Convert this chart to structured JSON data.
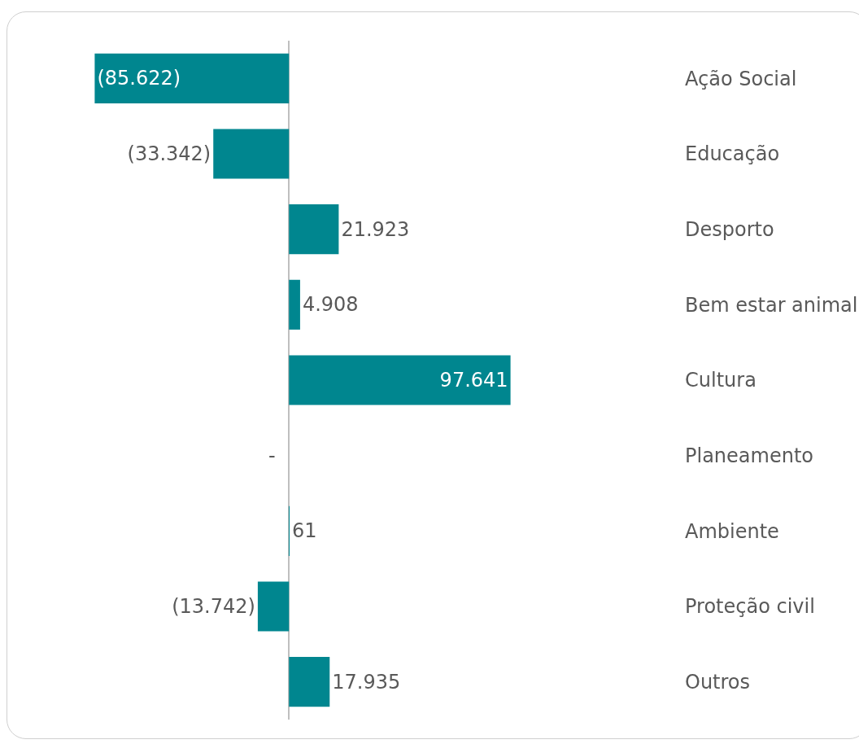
{
  "chart_data": {
    "type": "bar",
    "orientation": "horizontal",
    "categories": [
      "Ação Social",
      "Educação",
      "Desporto",
      "Bem estar animal",
      "Cultura",
      "Planeamento",
      "Ambiente",
      "Proteção civil",
      "Outros"
    ],
    "values": [
      -85622,
      -33342,
      21923,
      4908,
      97641,
      0,
      61,
      -13742,
      17935
    ],
    "value_labels": [
      "(85.622)",
      "(33.342)",
      "21.923",
      "4.908",
      "97.641",
      "-",
      "61",
      "(13.742)",
      "17.935"
    ],
    "color": "#00868f",
    "grid": false,
    "legend": false
  }
}
